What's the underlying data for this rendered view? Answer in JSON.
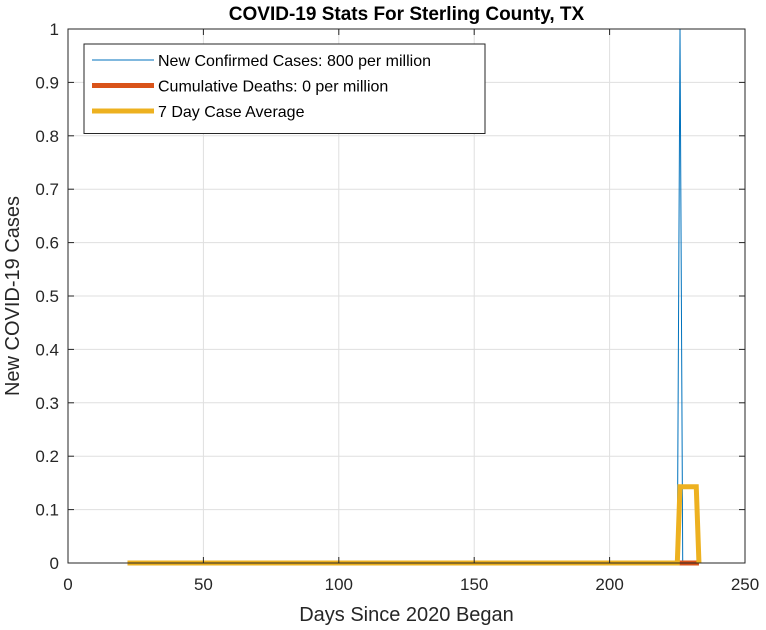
{
  "chart_data": {
    "type": "line",
    "title": "COVID-19 Stats For Sterling County, TX",
    "xlabel": "Days Since 2020 Began",
    "ylabel": "New COVID-19 Cases",
    "xlim": [
      0,
      250
    ],
    "ylim": [
      0,
      1
    ],
    "xticks": [
      0,
      50,
      100,
      150,
      200,
      250
    ],
    "yticks": [
      0,
      0.1,
      0.2,
      0.3,
      0.4,
      0.5,
      0.6,
      0.7,
      0.8,
      0.9,
      1
    ],
    "xtick_labels": [
      "0",
      "50",
      "100",
      "150",
      "200",
      "250"
    ],
    "ytick_labels": [
      "0",
      "0.1",
      "0.2",
      "0.3",
      "0.4",
      "0.5",
      "0.6",
      "0.7",
      "0.8",
      "0.9",
      "1"
    ],
    "grid": true,
    "legend_position": "top-left",
    "series": [
      {
        "name": "New Confirmed Cases: 800 per million",
        "color": "#0072BD",
        "line_width": "thin",
        "x": [
          22,
          225,
          226,
          227,
          233
        ],
        "y": [
          0,
          0,
          1,
          0,
          0
        ]
      },
      {
        "name": "Cumulative Deaths: 0 per million",
        "color": "#D95319",
        "line_width": "thick",
        "x": [
          22,
          233
        ],
        "y": [
          0,
          0
        ]
      },
      {
        "name": "7 Day Case Average",
        "color": "#EDB120",
        "line_width": "thick",
        "x": [
          22,
          225,
          226,
          232,
          233
        ],
        "y": [
          0,
          0,
          0.1429,
          0.1429,
          0
        ]
      }
    ]
  }
}
